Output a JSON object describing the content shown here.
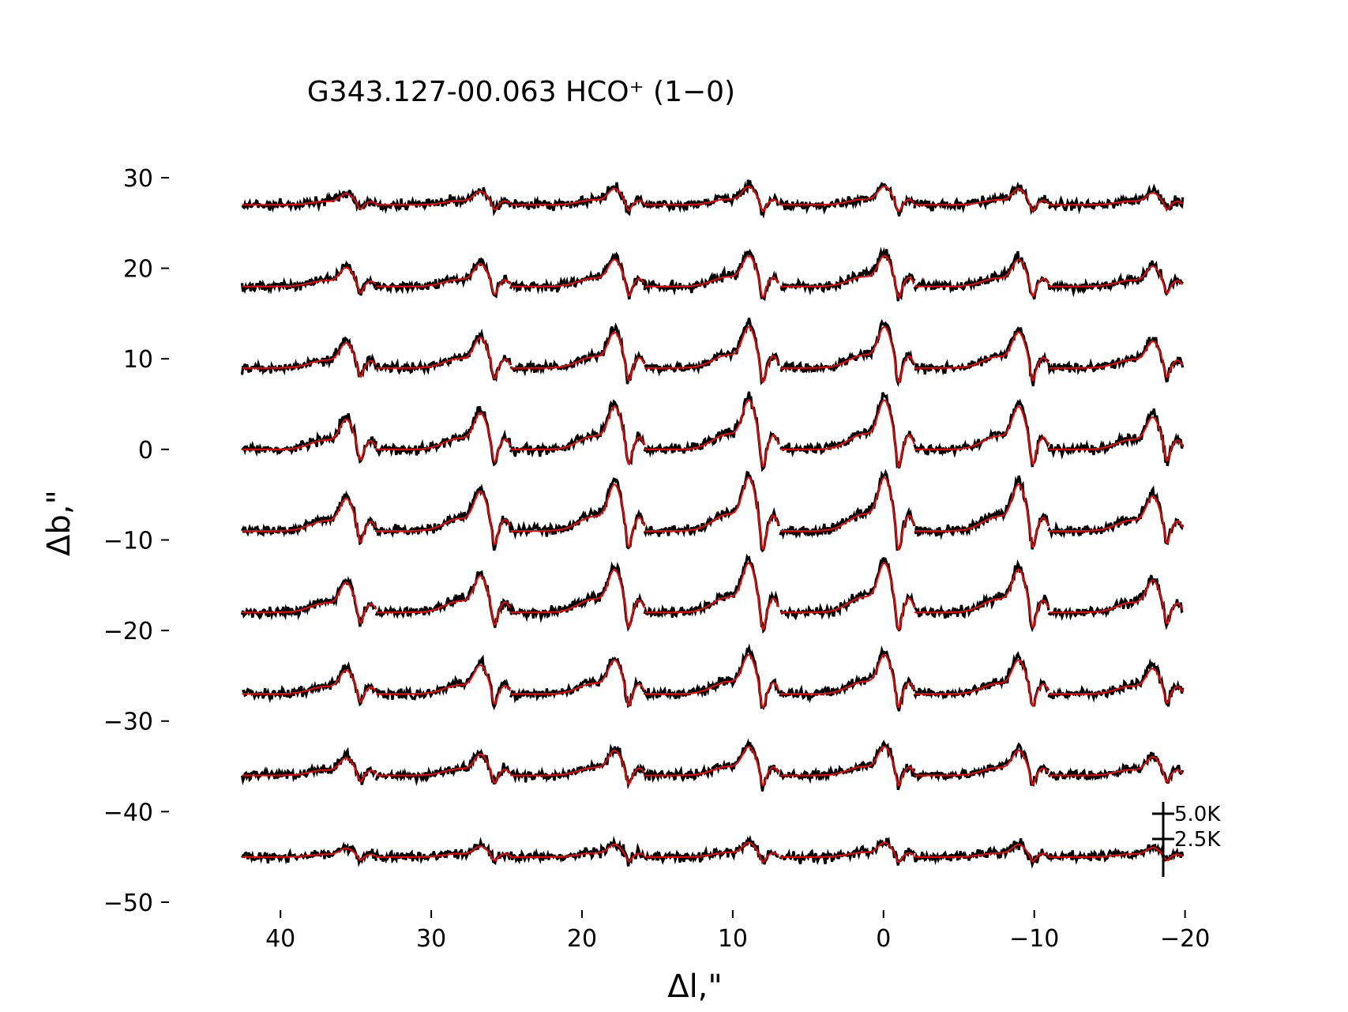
{
  "chart_data": {
    "type": "line",
    "title": "G343.127-00.063 HCO⁺ (1−0)",
    "xlabel": "Δl,\"",
    "ylabel": "Δb,\"",
    "xlim": [
      44.2,
      -19.6
    ],
    "ylim": [
      -50,
      32
    ],
    "x_ticks": [
      40,
      30,
      20,
      10,
      0,
      -10,
      -20
    ],
    "x_tick_labels": [
      "40",
      "30",
      "20",
      "10",
      "0",
      "−10",
      "−20"
    ],
    "y_ticks": [
      30,
      20,
      10,
      0,
      -10,
      -20,
      -30,
      -40,
      -50
    ],
    "y_tick_labels": [
      "30",
      "20",
      "10",
      "0",
      "−10",
      "−20",
      "−30",
      "−40",
      "−50"
    ],
    "grid": false,
    "legend": "none",
    "colors": {
      "data": "#000000",
      "fit": "#ff0000"
    },
    "series": [
      {
        "role": "observed spectra",
        "color": "#000000"
      },
      {
        "role": "model fit",
        "color": "#ff0000"
      }
    ],
    "grid_columns_dl": [
      38.1,
      29.2,
      20.3,
      11.4,
      2.4,
      -6.5,
      -15.4
    ],
    "grid_rows_db": [
      27,
      18,
      9,
      0,
      -9,
      -18,
      -27,
      -36,
      -45
    ],
    "spectrum_width_dl": 8.9,
    "scale_bar": {
      "labels": [
        "5.0K",
        "2.5K"
      ],
      "position": "bottom-right"
    }
  }
}
